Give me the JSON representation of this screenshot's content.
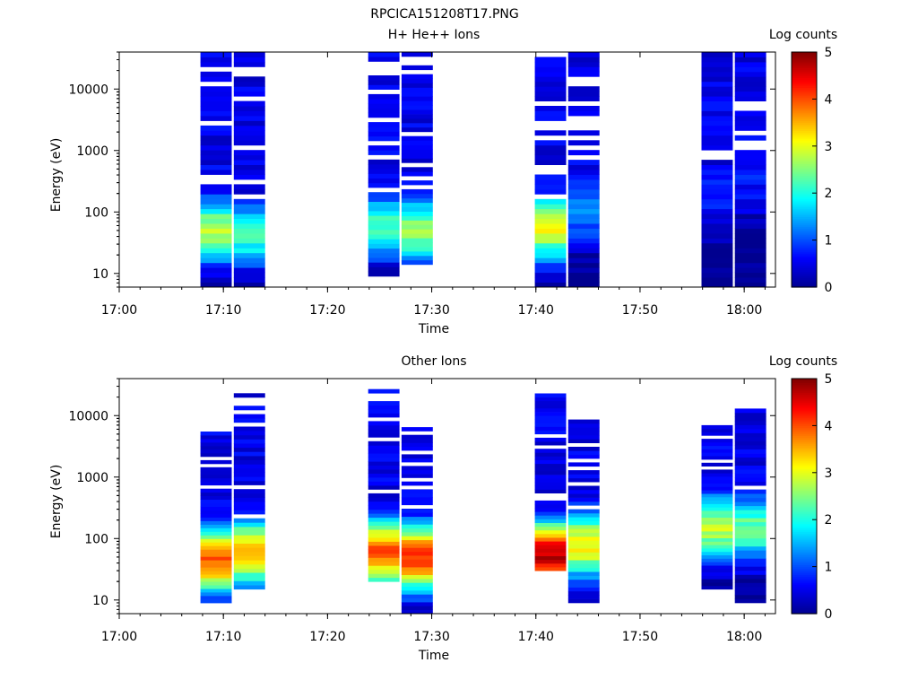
{
  "figure": {
    "title": "RPCICA151208T17.PNG"
  },
  "colormap": {
    "stops": [
      "#00008f",
      "#0000ff",
      "#0080ff",
      "#00ffff",
      "#80ff80",
      "#ffff00",
      "#ff8000",
      "#ff0000",
      "#800000"
    ]
  },
  "chart_data": [
    {
      "type": "heatmap",
      "title": "H+ He++ Ions",
      "xlabel": "Time",
      "ylabel": "Energy (eV)",
      "xlim": [
        "17:00",
        "18:03"
      ],
      "ylim": [
        6,
        40000
      ],
      "yscale": "log",
      "x_ticks": [
        "17:00",
        "17:10",
        "17:20",
        "17:30",
        "17:40",
        "17:50",
        "18:00"
      ],
      "y_ticks": [
        "10",
        "100",
        "1000",
        "10000"
      ],
      "colorbar": {
        "label": "Log counts",
        "range": [
          0,
          5
        ],
        "ticks": [
          "0",
          "1",
          "2",
          "3",
          "4",
          "5"
        ]
      },
      "columns": [
        {
          "t_start": "17:07.8",
          "t_end": "17:10.8",
          "e_min": 6,
          "e_max": 40000,
          "peak_level": 2.8,
          "peak_energy": 50
        },
        {
          "t_start": "17:11.0",
          "t_end": "17:14.0",
          "e_min": 6,
          "e_max": 40000,
          "peak_level": 2.2,
          "peak_energy": 45
        },
        {
          "t_start": "17:23.9",
          "t_end": "17:26.9",
          "e_min": 9,
          "e_max": 40000,
          "peak_level": 2.2,
          "peak_energy": 60
        },
        {
          "t_start": "17:27.1",
          "t_end": "17:30.1",
          "e_min": 14,
          "e_max": 40000,
          "peak_level": 2.6,
          "peak_energy": 50
        },
        {
          "t_start": "17:39.9",
          "t_end": "17:42.9",
          "e_min": 6,
          "e_max": 40000,
          "peak_level": 3.0,
          "peak_energy": 55
        },
        {
          "t_start": "17:43.1",
          "t_end": "17:46.1",
          "e_min": 6,
          "e_max": 40000,
          "peak_level": 1.4,
          "peak_energy": 110
        },
        {
          "t_start": "17:55.9",
          "t_end": "17:58.9",
          "e_min": 6,
          "e_max": 40000,
          "peak_level": 0.8,
          "peak_energy": 200
        },
        {
          "t_start": "17:59.1",
          "t_end": "18:02.1",
          "e_min": 6,
          "e_max": 40000,
          "peak_level": 0.7,
          "peak_energy": 300
        }
      ]
    },
    {
      "type": "heatmap",
      "title": "Other Ions",
      "xlabel": "Time",
      "ylabel": "Energy (eV)",
      "xlim": [
        "17:00",
        "18:03"
      ],
      "ylim": [
        6,
        40000
      ],
      "yscale": "log",
      "x_ticks": [
        "17:00",
        "17:10",
        "17:20",
        "17:30",
        "17:40",
        "17:50",
        "18:00"
      ],
      "y_ticks": [
        "10",
        "100",
        "1000",
        "10000"
      ],
      "colorbar": {
        "label": "Log counts",
        "range": [
          0,
          5
        ],
        "ticks": [
          "0",
          "1",
          "2",
          "3",
          "4",
          "5"
        ]
      },
      "columns": [
        {
          "t_start": "17:07.8",
          "t_end": "17:10.8",
          "e_min": 9,
          "e_max": 5500,
          "peak_level": 4.0,
          "peak_energy": 45
        },
        {
          "t_start": "17:11.0",
          "t_end": "17:14.0",
          "e_min": 15,
          "e_max": 27000,
          "peak_level": 3.6,
          "peak_energy": 60
        },
        {
          "t_start": "17:23.9",
          "t_end": "17:26.9",
          "e_min": 20,
          "e_max": 27000,
          "peak_level": 4.0,
          "peak_energy": 60
        },
        {
          "t_start": "17:27.1",
          "t_end": "17:30.1",
          "e_min": 6,
          "e_max": 6500,
          "peak_level": 4.2,
          "peak_energy": 50
        },
        {
          "t_start": "17:39.9",
          "t_end": "17:42.9",
          "e_min": 30,
          "e_max": 23000,
          "peak_level": 4.7,
          "peak_energy": 55
        },
        {
          "t_start": "17:43.1",
          "t_end": "17:46.1",
          "e_min": 9,
          "e_max": 10000,
          "peak_level": 3.2,
          "peak_energy": 80
        },
        {
          "t_start": "17:55.9",
          "t_end": "17:58.9",
          "e_min": 15,
          "e_max": 7000,
          "peak_level": 2.8,
          "peak_energy": 150
        },
        {
          "t_start": "17:59.1",
          "t_end": "18:02.1",
          "e_min": 9,
          "e_max": 13000,
          "peak_level": 2.4,
          "peak_energy": 150
        }
      ]
    }
  ]
}
